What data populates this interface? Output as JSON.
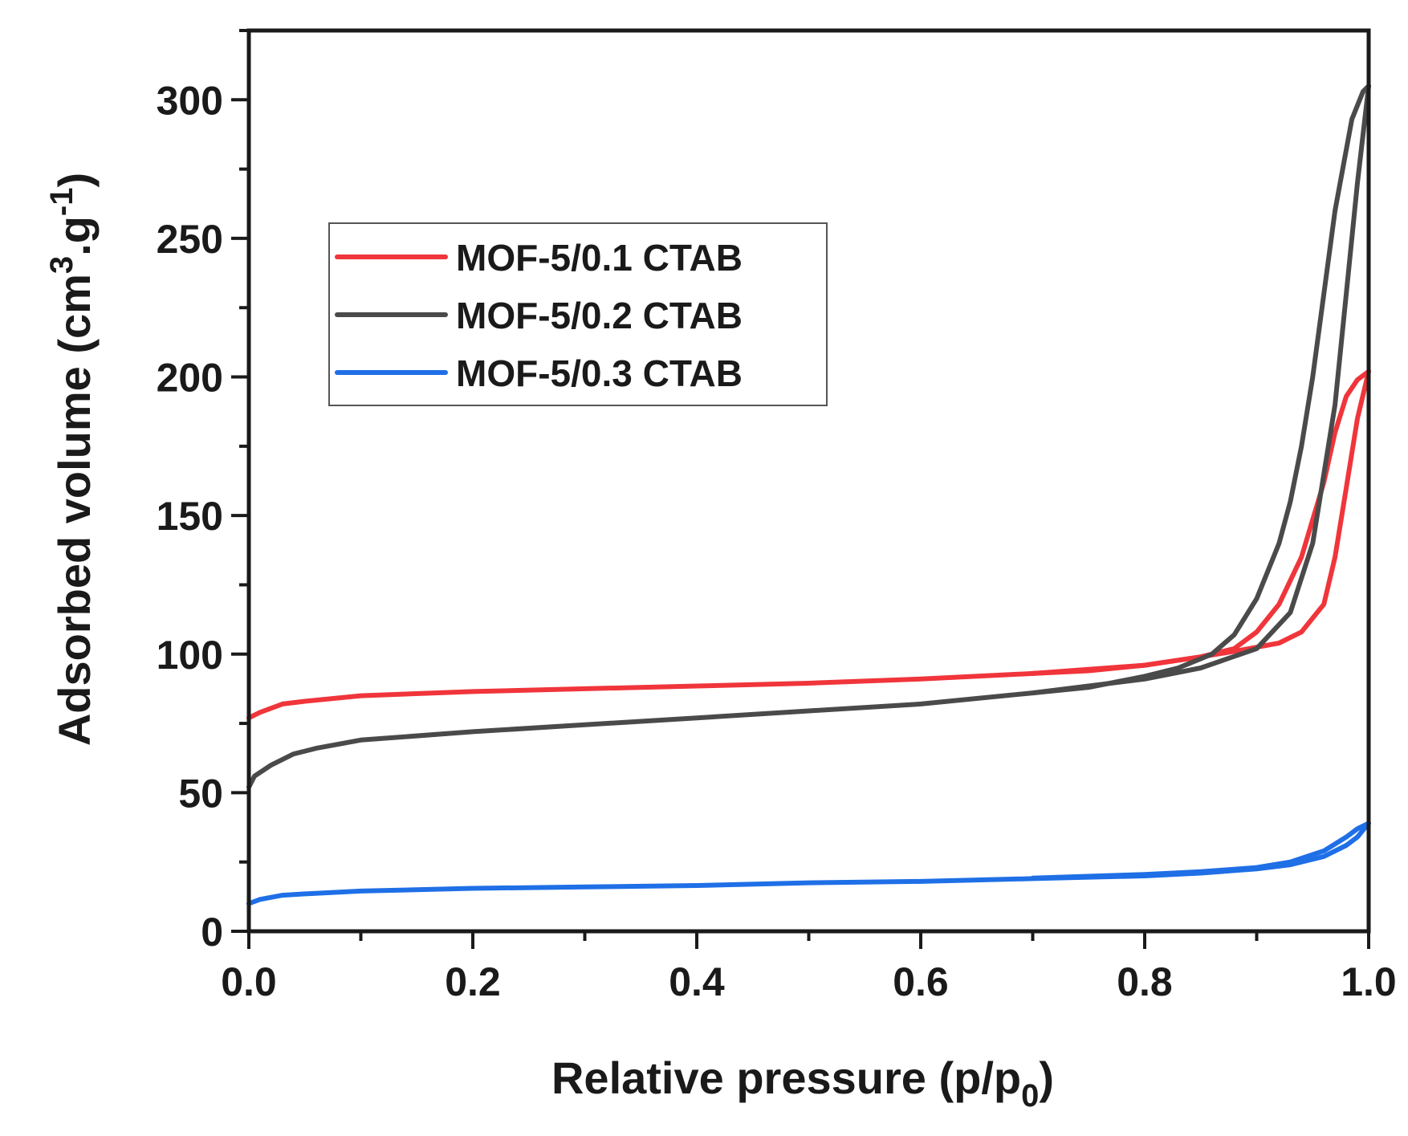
{
  "chart_data": {
    "type": "line",
    "xlabel": "Relative pressure (p/p",
    "xlabel_sub": "0",
    "xlabel_end": ")",
    "ylabel": "Adsorbed volume (cm",
    "ylabel_sup": "3",
    "ylabel_mid": ".g",
    "ylabel_sup2": "-1",
    "ylabel_end": ")",
    "xlim": [
      0.0,
      1.0
    ],
    "ylim": [
      0,
      325
    ],
    "xticks": [
      0.0,
      0.2,
      0.4,
      0.6,
      0.8,
      1.0
    ],
    "xtick_labels": [
      "0.0",
      "0.2",
      "0.4",
      "0.6",
      "0.8",
      "1.0"
    ],
    "yticks": [
      0,
      50,
      100,
      150,
      200,
      250,
      300
    ],
    "ytick_labels": [
      "0",
      "50",
      "100",
      "150",
      "200",
      "250",
      "300"
    ],
    "legend_position": "upper-left",
    "grid": false,
    "series": [
      {
        "name": "MOF-5/0.1 CTAB",
        "color": "#f0353b",
        "adsorption": [
          [
            0.0,
            77
          ],
          [
            0.01,
            79
          ],
          [
            0.03,
            82
          ],
          [
            0.05,
            83
          ],
          [
            0.1,
            85
          ],
          [
            0.2,
            86.5
          ],
          [
            0.3,
            87.5
          ],
          [
            0.4,
            88.5
          ],
          [
            0.5,
            89.5
          ],
          [
            0.6,
            91
          ],
          [
            0.7,
            93
          ],
          [
            0.75,
            94
          ],
          [
            0.8,
            96
          ],
          [
            0.85,
            99
          ],
          [
            0.88,
            101
          ],
          [
            0.92,
            104
          ],
          [
            0.94,
            108
          ],
          [
            0.96,
            118
          ],
          [
            0.97,
            135
          ],
          [
            0.98,
            160
          ],
          [
            0.99,
            185
          ],
          [
            1.0,
            202
          ]
        ],
        "desorption": [
          [
            1.0,
            202
          ],
          [
            0.99,
            199
          ],
          [
            0.98,
            193
          ],
          [
            0.97,
            180
          ],
          [
            0.96,
            162
          ],
          [
            0.94,
            135
          ],
          [
            0.92,
            118
          ],
          [
            0.9,
            108
          ],
          [
            0.88,
            102
          ],
          [
            0.85,
            99
          ],
          [
            0.8,
            96
          ],
          [
            0.7,
            93
          ]
        ]
      },
      {
        "name": "MOF-5/0.2 CTAB",
        "color": "#4a4a4a",
        "adsorption": [
          [
            0.0,
            52
          ],
          [
            0.005,
            56
          ],
          [
            0.02,
            60
          ],
          [
            0.04,
            64
          ],
          [
            0.06,
            66
          ],
          [
            0.1,
            69
          ],
          [
            0.2,
            72
          ],
          [
            0.3,
            74.5
          ],
          [
            0.4,
            77
          ],
          [
            0.5,
            79.5
          ],
          [
            0.6,
            82
          ],
          [
            0.7,
            86
          ],
          [
            0.8,
            91
          ],
          [
            0.85,
            95
          ],
          [
            0.9,
            102
          ],
          [
            0.93,
            115
          ],
          [
            0.95,
            140
          ],
          [
            0.97,
            190
          ],
          [
            0.98,
            230
          ],
          [
            0.99,
            270
          ],
          [
            1.0,
            305
          ]
        ],
        "desorption": [
          [
            1.0,
            305
          ],
          [
            0.995,
            303
          ],
          [
            0.985,
            293
          ],
          [
            0.97,
            260
          ],
          [
            0.96,
            230
          ],
          [
            0.95,
            200
          ],
          [
            0.94,
            175
          ],
          [
            0.93,
            155
          ],
          [
            0.92,
            140
          ],
          [
            0.9,
            120
          ],
          [
            0.88,
            107
          ],
          [
            0.86,
            100
          ],
          [
            0.83,
            95
          ],
          [
            0.8,
            92
          ],
          [
            0.75,
            88
          ],
          [
            0.7,
            86
          ]
        ]
      },
      {
        "name": "MOF-5/0.3 CTAB",
        "color": "#1f6fe6",
        "adsorption": [
          [
            0.0,
            10
          ],
          [
            0.01,
            11.5
          ],
          [
            0.03,
            13
          ],
          [
            0.05,
            13.5
          ],
          [
            0.1,
            14.5
          ],
          [
            0.2,
            15.5
          ],
          [
            0.3,
            16
          ],
          [
            0.4,
            16.5
          ],
          [
            0.5,
            17.5
          ],
          [
            0.6,
            18
          ],
          [
            0.7,
            19
          ],
          [
            0.8,
            20
          ],
          [
            0.85,
            21
          ],
          [
            0.9,
            22.5
          ],
          [
            0.93,
            24
          ],
          [
            0.96,
            27
          ],
          [
            0.98,
            31
          ],
          [
            0.99,
            34
          ],
          [
            1.0,
            39
          ]
        ],
        "desorption": [
          [
            1.0,
            39
          ],
          [
            0.99,
            37
          ],
          [
            0.98,
            34
          ],
          [
            0.96,
            29
          ],
          [
            0.93,
            25
          ],
          [
            0.9,
            23
          ],
          [
            0.85,
            21.5
          ],
          [
            0.8,
            20.5
          ],
          [
            0.7,
            19.2
          ]
        ]
      }
    ]
  }
}
